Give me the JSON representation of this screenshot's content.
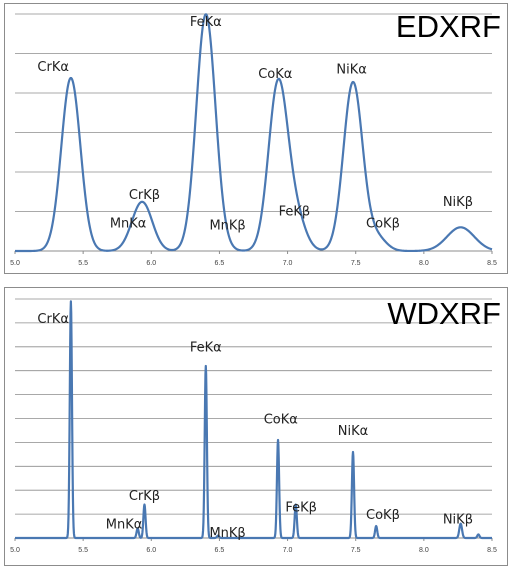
{
  "colors": {
    "line": "#4a78b2",
    "grid": "#8c8c8c"
  },
  "chart_data": [
    {
      "type": "line",
      "title": "EDXRF",
      "xlim": [
        5.0,
        8.5
      ],
      "ylim": [
        0,
        100
      ],
      "x_ticks": [
        "5.0",
        "5.5",
        "6.0",
        "6.5",
        "7.0",
        "7.5",
        "8.0",
        "8.5"
      ],
      "grid": true,
      "peaks": [
        {
          "label": "CrKα",
          "center": 5.41,
          "height": 73,
          "width": 0.07
        },
        {
          "label": "CrKβ",
          "center": 5.95,
          "height": 14,
          "width": 0.07
        },
        {
          "label": "MnKα",
          "center": 5.9,
          "height": 8,
          "width": 0.07
        },
        {
          "label": "FeKα",
          "center": 6.4,
          "height": 99,
          "width": 0.07
        },
        {
          "label": "MnKβ",
          "center": 6.49,
          "height": 2,
          "width": 0.07
        },
        {
          "label": "CoKα",
          "center": 6.93,
          "height": 70,
          "width": 0.07
        },
        {
          "label": "FeKβ",
          "center": 7.06,
          "height": 14,
          "width": 0.07
        },
        {
          "label": "NiKα",
          "center": 7.48,
          "height": 71,
          "width": 0.07
        },
        {
          "label": "CoKβ",
          "center": 7.65,
          "height": 6,
          "width": 0.07
        },
        {
          "label": "NiKβ",
          "center": 8.27,
          "height": 10,
          "width": 0.1
        }
      ],
      "labels": [
        {
          "text": "CrKα",
          "x": 5.28,
          "y": 76
        },
        {
          "text": "CrKβ",
          "x": 5.95,
          "y": 22
        },
        {
          "text": "MnKα",
          "x": 5.83,
          "y": 10
        },
        {
          "text": "FeKα",
          "x": 6.4,
          "y": 95
        },
        {
          "text": "MnKβ",
          "x": 6.56,
          "y": 9
        },
        {
          "text": "CoKα",
          "x": 6.91,
          "y": 73
        },
        {
          "text": "FeKβ",
          "x": 7.05,
          "y": 15
        },
        {
          "text": "NiKα",
          "x": 7.47,
          "y": 75
        },
        {
          "text": "CoKβ",
          "x": 7.7,
          "y": 10
        },
        {
          "text": "NiKβ",
          "x": 8.25,
          "y": 19
        }
      ]
    },
    {
      "type": "line",
      "title": "WDXRF",
      "xlim": [
        5.0,
        8.5
      ],
      "ylim": [
        0,
        100
      ],
      "x_ticks": [
        "5.0",
        "5.5",
        "6.0",
        "6.5",
        "7.0",
        "7.5",
        "8.0",
        "8.5"
      ],
      "grid": true,
      "peaks": [
        {
          "label": "CrKα",
          "center": 5.41,
          "height": 99,
          "width": 0.008
        },
        {
          "label": "MnKα",
          "center": 5.9,
          "height": 4,
          "width": 0.008
        },
        {
          "label": "CrKβ",
          "center": 5.95,
          "height": 14,
          "width": 0.008
        },
        {
          "label": "FeKα",
          "center": 6.4,
          "height": 72,
          "width": 0.008
        },
        {
          "label": "MnKβ",
          "center": 6.49,
          "height": 1,
          "width": 0.008
        },
        {
          "label": "CoKα",
          "center": 6.93,
          "height": 41,
          "width": 0.008
        },
        {
          "label": "FeKβ",
          "center": 7.06,
          "height": 14,
          "width": 0.008
        },
        {
          "label": "NiKα",
          "center": 7.48,
          "height": 36,
          "width": 0.008
        },
        {
          "label": "CoKβ",
          "center": 7.65,
          "height": 5,
          "width": 0.008
        },
        {
          "label": "NiKβ",
          "center": 8.27,
          "height": 6,
          "width": 0.01
        },
        {
          "label": "",
          "center": 8.4,
          "height": 1.5,
          "width": 0.008
        }
      ],
      "labels": [
        {
          "text": "CrKα",
          "x": 5.28,
          "y": 90
        },
        {
          "text": "MnKα",
          "x": 5.8,
          "y": 4
        },
        {
          "text": "CrKβ",
          "x": 5.95,
          "y": 16
        },
        {
          "text": "FeKα",
          "x": 6.4,
          "y": 78
        },
        {
          "text": "MnKβ",
          "x": 6.56,
          "y": 0.5
        },
        {
          "text": "CoKα",
          "x": 6.95,
          "y": 48
        },
        {
          "text": "FeKβ",
          "x": 7.1,
          "y": 11
        },
        {
          "text": "NiKα",
          "x": 7.48,
          "y": 43
        },
        {
          "text": "CoKβ",
          "x": 7.7,
          "y": 8
        },
        {
          "text": "NiKβ",
          "x": 8.25,
          "y": 6
        }
      ]
    }
  ]
}
